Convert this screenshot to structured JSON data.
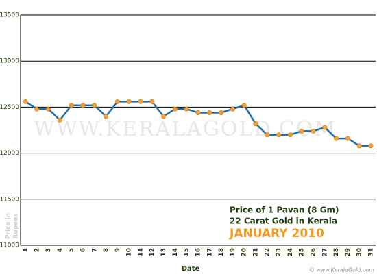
{
  "chart_data": {
    "type": "line",
    "title_lines": [
      "Price of 1 Pavan (8 Gm)",
      "22 Carat Gold in Kerala"
    ],
    "subtitle": "JANUARY 2010",
    "watermark": "WWW.KERALAGOLD.COM",
    "credit": "© www.KeralaGold.com",
    "x_label": "Date",
    "y_label_lines": [
      "Price in",
      "Rupees"
    ],
    "categories": [
      "1",
      "2",
      "3",
      "4",
      "5",
      "6",
      "7",
      "8",
      "9",
      "10",
      "11",
      "12",
      "13",
      "14",
      "15",
      "16",
      "17",
      "18",
      "19",
      "20",
      "21",
      "22",
      "23",
      "24",
      "25",
      "26",
      "27",
      "28",
      "29",
      "30",
      "31"
    ],
    "series": [
      {
        "name": "Price",
        "color": "#1e6fa8",
        "marker_color": "#f5a032",
        "values": [
          12560,
          12480,
          12480,
          12360,
          12520,
          12520,
          12520,
          12400,
          12560,
          12560,
          12560,
          12560,
          12400,
          12480,
          12480,
          12440,
          12440,
          12440,
          12480,
          12520,
          12320,
          12200,
          12200,
          12200,
          12240,
          12240,
          12280,
          12160,
          12160,
          12080,
          12080
        ]
      }
    ],
    "ylim": [
      11000,
      13500
    ],
    "yticks": [
      11000,
      11500,
      12000,
      12500,
      13000,
      13500
    ],
    "grid": true
  }
}
